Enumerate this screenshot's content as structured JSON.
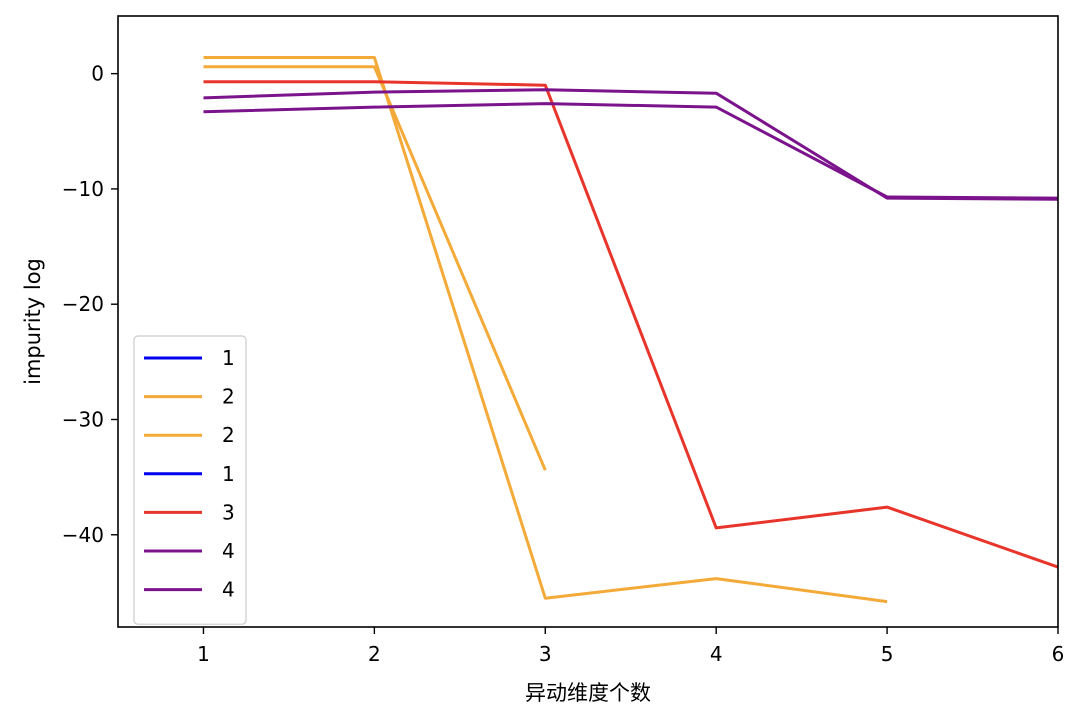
{
  "chart_data": {
    "type": "line",
    "title": "",
    "xlabel": "异动维度个数",
    "ylabel": "impurity log",
    "xlim": [
      0.5,
      6.0
    ],
    "ylim": [
      -48,
      5
    ],
    "xticks": [
      1,
      2,
      3,
      4,
      5,
      6
    ],
    "yticks": [
      0,
      -10,
      -20,
      -30,
      -40
    ],
    "ytick_labels": [
      "0",
      "−10",
      "−20",
      "−30",
      "−40"
    ],
    "grid": false,
    "legend_position": "lower-left",
    "series": [
      {
        "name": "1",
        "color": "#0000ee",
        "x": [],
        "y": []
      },
      {
        "name": "2",
        "color": "#f3aa38",
        "x": [
          1,
          2,
          3,
          4,
          5
        ],
        "y": [
          1.4,
          1.4,
          -45.5,
          -43.8,
          -45.8
        ]
      },
      {
        "name": "2",
        "color": "#f3aa38",
        "x": [
          1,
          2,
          3
        ],
        "y": [
          0.6,
          0.6,
          -34.4
        ]
      },
      {
        "name": "1",
        "color": "#0000ee",
        "x": [],
        "y": []
      },
      {
        "name": "3",
        "color": "#e8352b",
        "x": [
          1,
          2,
          3,
          4,
          5,
          6
        ],
        "y": [
          -0.7,
          -0.7,
          -1.0,
          -39.4,
          -37.6,
          -42.8
        ]
      },
      {
        "name": "4",
        "color": "#7b138c",
        "x": [
          1,
          2,
          3,
          4,
          5,
          6
        ],
        "y": [
          -2.1,
          -1.6,
          -1.4,
          -1.7,
          -10.8,
          -10.9
        ]
      },
      {
        "name": "4",
        "color": "#7b138c",
        "x": [
          1,
          2,
          3,
          4,
          5,
          6
        ],
        "y": [
          -3.3,
          -2.9,
          -2.6,
          -2.9,
          -10.7,
          -10.8
        ]
      }
    ]
  }
}
